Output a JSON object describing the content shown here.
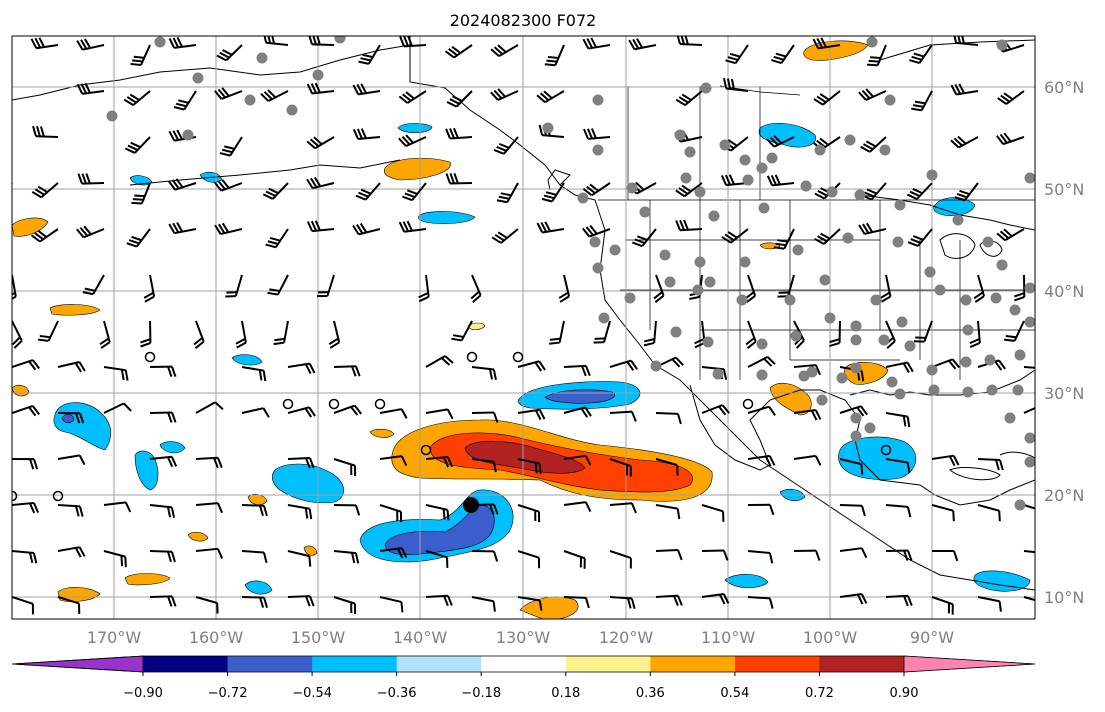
{
  "title": "2024082300 F072",
  "map": {
    "lon_labels": [
      "170°W",
      "160°W",
      "150°W",
      "140°W",
      "130°W",
      "120°W",
      "110°W",
      "100°W",
      "90°W"
    ],
    "lat_labels": [
      "60°N",
      "50°N",
      "40°N",
      "30°N",
      "20°N",
      "10°N"
    ]
  },
  "colorbar": {
    "tick_labels": [
      "−0.90",
      "−0.72",
      "−0.54",
      "−0.36",
      "−0.18",
      "0.18",
      "0.36",
      "0.54",
      "0.72",
      "0.90"
    ],
    "colors": {
      "under": "#9933cc",
      "bins": [
        "#000080",
        "#3a5fcd",
        "#00bfff",
        "#b0e2ff",
        "#ffffff",
        "#fff08f",
        "#ffa500",
        "#ff4000",
        "#b22222"
      ],
      "over": "#ff82b0"
    }
  },
  "field_colors": {
    "neg_strong": "#3a5fcd",
    "neg_mid": "#00bfff",
    "neg_weak": "#b0e2ff",
    "pos_weak": "#fff08f",
    "pos_mid": "#ffa500",
    "pos_strong": "#ff4000",
    "pos_max": "#b22222"
  }
}
